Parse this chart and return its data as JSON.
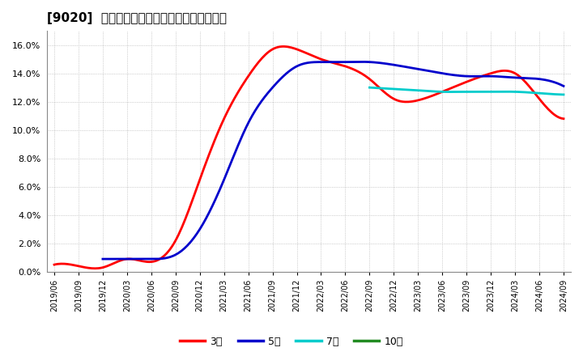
{
  "title": "[9020]  当期純利益マージンの標準偏差の推移",
  "background_color": "#ffffff",
  "plot_background_color": "#ffffff",
  "grid_color": "#aaaaaa",
  "ylim": [
    0.0,
    0.17
  ],
  "yticks": [
    0.0,
    0.02,
    0.04,
    0.06,
    0.08,
    0.1,
    0.12,
    0.14,
    0.16
  ],
  "x_labels": [
    "2019/06",
    "2019/09",
    "2019/12",
    "2020/03",
    "2020/06",
    "2020/09",
    "2020/12",
    "2021/03",
    "2021/06",
    "2021/09",
    "2021/12",
    "2022/03",
    "2022/06",
    "2022/09",
    "2022/12",
    "2023/03",
    "2023/06",
    "2023/09",
    "2023/12",
    "2024/03",
    "2024/06",
    "2024/09"
  ],
  "series": {
    "3year": {
      "color": "#ff0000",
      "label": "3年",
      "y": [
        0.005,
        0.004,
        0.003,
        0.009,
        0.007,
        0.022,
        0.065,
        0.108,
        0.138,
        0.157,
        0.157,
        0.15,
        0.145,
        0.136,
        0.122,
        0.121,
        0.127,
        0.134,
        0.14,
        0.14,
        0.122,
        0.108
      ]
    },
    "5year": {
      "color": "#0000cc",
      "label": "5年",
      "y": [
        null,
        null,
        0.009,
        0.009,
        0.009,
        0.012,
        0.03,
        0.065,
        0.105,
        0.13,
        0.145,
        0.148,
        0.148,
        0.148,
        0.146,
        0.143,
        0.14,
        0.138,
        0.138,
        0.137,
        0.136,
        0.131
      ]
    },
    "7year": {
      "color": "#00cccc",
      "label": "7年",
      "y": [
        null,
        null,
        null,
        null,
        null,
        null,
        null,
        null,
        null,
        null,
        null,
        null,
        null,
        0.13,
        0.129,
        0.128,
        0.127,
        0.127,
        0.127,
        0.127,
        0.126,
        0.125
      ]
    },
    "10year": {
      "color": "#228B22",
      "label": "10年",
      "y": [
        null,
        null,
        null,
        null,
        null,
        null,
        null,
        null,
        null,
        null,
        null,
        null,
        null,
        null,
        null,
        null,
        null,
        null,
        null,
        null,
        null,
        null
      ]
    }
  },
  "legend_entries": [
    "3年",
    "5年",
    "7年",
    "10年"
  ],
  "legend_colors": [
    "#ff0000",
    "#0000cc",
    "#00cccc",
    "#228B22"
  ]
}
